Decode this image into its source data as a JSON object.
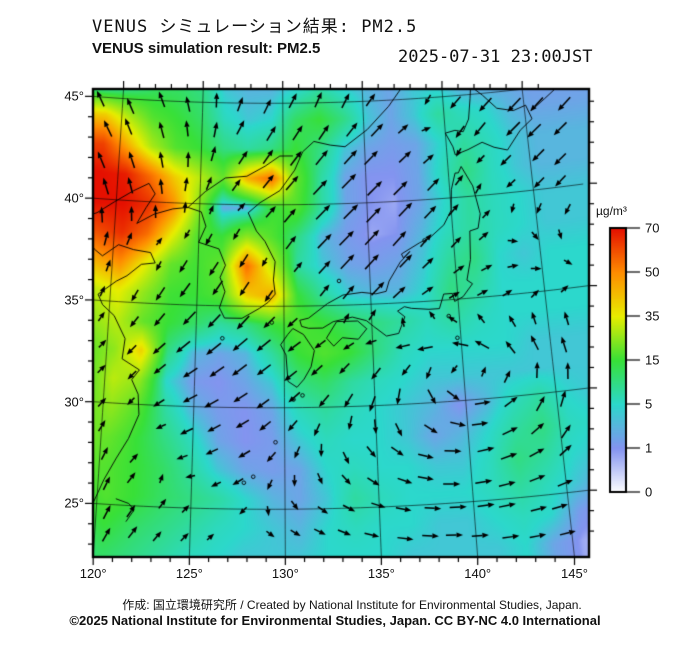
{
  "header": {
    "title_jp": "VENUS シミュレーション結果: PM2.5",
    "title_en": "VENUS simulation result: PM2.5",
    "timestamp": "2025-07-31 23:00JST"
  },
  "footer": {
    "credit": "作成: 国立環境研究所 / Created by National Institute for Environmental Studies, Japan.",
    "license": "©2025 National Institute for Environmental Studies, Japan. CC BY-NC 4.0 International"
  },
  "colorbar": {
    "unit": "µg/m³",
    "tick_values": [
      70,
      50,
      35,
      15,
      5,
      1,
      0
    ],
    "scale_values": [
      0,
      1,
      5,
      15,
      35,
      50,
      70
    ],
    "scale_colors": [
      "#ffffff",
      "#8494f0",
      "#2cd8cc",
      "#38e038",
      "#e8ee00",
      "#ff8c00",
      "#e51000"
    ]
  },
  "map": {
    "lon_ticks": [
      {
        "v": 120,
        "label": "120°"
      },
      {
        "v": 125,
        "label": "125°"
      },
      {
        "v": 130,
        "label": "130°"
      },
      {
        "v": 135,
        "label": "135°"
      },
      {
        "v": 140,
        "label": "140°"
      },
      {
        "v": 145,
        "label": "145°"
      }
    ],
    "lat_ticks": [
      {
        "v": 45,
        "label": "45°"
      },
      {
        "v": 40,
        "label": "40°"
      },
      {
        "v": 35,
        "label": "35°"
      },
      {
        "v": 30,
        "label": "30°"
      },
      {
        "v": 25,
        "label": "25°"
      }
    ]
  },
  "chart_data": {
    "type": "heatmap",
    "title": "VENUS simulation result: PM2.5",
    "unit": "µg/m³",
    "pm25_grid": {
      "lon0": 119,
      "lon1": 147,
      "nx": 20,
      "lat0": 45.6,
      "lat1": 22.6,
      "ny": 17,
      "values": [
        [
          4,
          8,
          12,
          12,
          10,
          4,
          3,
          3,
          5,
          8,
          5,
          3,
          2,
          4,
          4,
          2,
          1.5,
          2,
          1.5,
          1.5
        ],
        [
          40,
          28,
          18,
          15,
          12,
          6,
          4,
          5,
          12,
          15,
          10,
          4,
          2,
          4,
          8,
          6,
          5,
          3,
          2,
          2
        ],
        [
          62,
          45,
          28,
          18,
          15,
          10,
          8,
          10,
          15,
          10,
          4,
          2,
          1.5,
          2,
          5,
          8,
          6,
          4,
          3,
          3
        ],
        [
          70,
          68,
          55,
          40,
          30,
          20,
          45,
          55,
          20,
          8,
          2,
          1,
          1,
          2,
          6,
          10,
          6,
          4,
          3,
          3
        ],
        [
          70,
          70,
          65,
          50,
          25,
          2,
          2,
          15,
          18,
          8,
          2,
          1,
          0.8,
          2,
          5,
          8,
          6,
          5,
          4,
          4
        ],
        [
          60,
          65,
          55,
          35,
          18,
          15,
          25,
          18,
          10,
          3,
          1.5,
          0.8,
          1,
          3,
          6,
          8,
          6,
          5,
          4,
          4
        ],
        [
          45,
          50,
          35,
          20,
          16,
          20,
          55,
          30,
          8,
          4,
          2,
          1.5,
          2,
          4,
          8,
          10,
          5,
          4,
          5,
          5
        ],
        [
          30,
          35,
          25,
          16,
          15,
          18,
          40,
          45,
          15,
          8,
          4,
          3,
          3,
          5,
          10,
          8,
          5,
          5,
          5,
          5
        ],
        [
          25,
          30,
          20,
          15,
          12,
          8,
          10,
          15,
          18,
          15,
          12,
          10,
          8,
          6,
          8,
          6,
          5,
          5,
          5,
          5
        ],
        [
          20,
          25,
          40,
          10,
          3,
          2,
          3,
          8,
          15,
          18,
          15,
          10,
          6,
          5,
          5,
          5,
          5,
          4,
          4,
          4
        ],
        [
          18,
          30,
          25,
          5,
          1.5,
          1,
          2,
          4,
          10,
          12,
          8,
          6,
          5,
          4,
          4,
          4,
          4,
          4,
          4,
          4
        ],
        [
          20,
          25,
          18,
          8,
          3,
          1.5,
          1,
          2,
          6,
          8,
          6,
          5,
          4,
          3,
          1,
          3,
          6,
          8,
          5,
          4
        ],
        [
          22,
          20,
          15,
          10,
          6,
          2,
          1,
          1.5,
          4,
          6,
          5,
          5,
          4,
          2,
          3,
          5,
          8,
          10,
          6,
          5
        ],
        [
          20,
          18,
          15,
          12,
          8,
          4,
          2,
          1.5,
          2,
          5,
          6,
          5,
          5,
          4,
          4,
          6,
          10,
          8,
          5,
          4
        ],
        [
          15,
          18,
          15,
          12,
          10,
          8,
          5,
          3,
          2,
          4,
          8,
          6,
          5,
          5,
          5,
          6,
          8,
          6,
          4,
          2
        ],
        [
          12,
          15,
          12,
          10,
          8,
          6,
          5,
          4,
          3,
          5,
          6,
          5,
          5,
          4,
          4,
          5,
          6,
          5,
          1.5,
          0.5
        ],
        [
          10,
          12,
          10,
          8,
          6,
          5,
          4,
          4,
          4,
          5,
          5,
          5,
          4,
          4,
          4,
          4,
          5,
          2,
          0.8,
          0.4
        ]
      ]
    },
    "wind_grid": {
      "lon0": 119,
      "lon1": 147,
      "nx": 11,
      "lat0": 45.6,
      "lat1": 22.6,
      "ny": 10,
      "u": [
        [
          -0.4,
          -0.4,
          -0.2,
          0.2,
          0.4,
          0.3,
          0.4,
          -0.3,
          -0.8,
          -0.8,
          -0.7
        ],
        [
          -0.5,
          -0.3,
          0.0,
          0.5,
          0.6,
          0.7,
          0.8,
          0.4,
          -0.6,
          -0.9,
          -0.8
        ],
        [
          -0.3,
          -0.2,
          0.2,
          0.4,
          0.8,
          1.0,
          1.0,
          0.8,
          0.3,
          -0.5,
          -0.6
        ],
        [
          0.2,
          0.3,
          -0.3,
          -0.5,
          0.5,
          1.0,
          1.0,
          0.6,
          0.4,
          0.2,
          0.0
        ],
        [
          0.3,
          -0.4,
          -0.7,
          -0.6,
          -0.3,
          0.6,
          0.8,
          0.5,
          0.5,
          0.4,
          0.2
        ],
        [
          0.5,
          -0.6,
          -0.9,
          -1.0,
          -0.8,
          -0.5,
          -0.6,
          -1.0,
          -0.9,
          -0.5,
          -0.3
        ],
        [
          0.6,
          -0.3,
          -0.8,
          -0.8,
          -0.6,
          -0.5,
          -0.3,
          0.6,
          0.9,
          0.3,
          0.0
        ],
        [
          0.3,
          0.3,
          -0.5,
          -0.6,
          -0.3,
          0.2,
          0.6,
          1.0,
          1.0,
          0.8,
          0.2
        ],
        [
          0.3,
          0.4,
          0.2,
          -0.3,
          0.2,
          0.5,
          0.8,
          1.0,
          1.0,
          0.9,
          0.8
        ],
        [
          0.4,
          0.5,
          0.3,
          0.2,
          0.4,
          0.7,
          0.9,
          1.0,
          1.0,
          0.9,
          0.8
        ]
      ],
      "v": [
        [
          0.9,
          0.9,
          0.8,
          0.7,
          0.8,
          0.9,
          0.6,
          -0.5,
          -0.8,
          -0.9,
          -0.9
        ],
        [
          1.0,
          1.0,
          0.9,
          0.8,
          0.9,
          0.9,
          0.8,
          0.3,
          -0.8,
          -0.9,
          -0.8
        ],
        [
          1.0,
          0.9,
          0.6,
          0.5,
          0.9,
          1.0,
          1.0,
          0.8,
          0.5,
          -0.5,
          -0.6
        ],
        [
          0.8,
          0.4,
          -0.6,
          -0.8,
          0.7,
          1.0,
          1.1,
          0.7,
          0.4,
          -0.2,
          -0.3
        ],
        [
          0.6,
          -0.7,
          -0.9,
          -0.9,
          -0.4,
          0.8,
          0.8,
          0.3,
          0.2,
          0.1,
          0.0
        ],
        [
          0.5,
          -0.6,
          -0.7,
          -0.8,
          -0.6,
          -0.4,
          -0.2,
          -0.1,
          0.5,
          0.8,
          0.9
        ],
        [
          0.6,
          -0.3,
          -0.4,
          -0.5,
          -0.5,
          -0.7,
          -1.0,
          -0.8,
          0.3,
          1.0,
          1.0
        ],
        [
          0.8,
          0.3,
          -0.2,
          -0.3,
          -0.5,
          -0.6,
          -0.5,
          -0.1,
          0.3,
          0.6,
          0.9
        ],
        [
          0.9,
          0.6,
          0.2,
          -0.2,
          -0.3,
          -0.3,
          -0.2,
          0.0,
          0.2,
          0.3,
          0.3
        ],
        [
          0.9,
          0.6,
          0.3,
          0.1,
          -0.1,
          -0.2,
          -0.1,
          0.0,
          0.1,
          0.2,
          0.2
        ]
      ]
    },
    "coastlines": [
      [
        [
          119.8,
          25.0
        ],
        [
          120.3,
          26.2
        ],
        [
          120.9,
          27.3
        ],
        [
          121.5,
          28.3
        ],
        [
          122.0,
          29.5
        ],
        [
          121.9,
          30.5
        ],
        [
          121.5,
          31.2
        ],
        [
          121.9,
          31.7
        ],
        [
          120.9,
          32.2
        ],
        [
          121.0,
          33.2
        ],
        [
          120.3,
          34.3
        ],
        [
          119.6,
          34.8
        ],
        [
          119.3,
          35.3
        ],
        [
          120.3,
          36.0
        ],
        [
          120.9,
          36.3
        ],
        [
          121.7,
          36.9
        ],
        [
          122.5,
          37.0
        ],
        [
          122.2,
          37.5
        ],
        [
          121.2,
          37.6
        ],
        [
          120.3,
          37.8
        ],
        [
          119.4,
          37.2
        ],
        [
          118.9,
          37.5
        ],
        [
          118.3,
          38.2
        ],
        [
          118.0,
          39.0
        ],
        [
          118.9,
          39.3
        ],
        [
          119.9,
          39.9
        ],
        [
          121.0,
          40.5
        ],
        [
          121.9,
          40.9
        ],
        [
          122.3,
          40.4
        ],
        [
          121.8,
          39.7
        ],
        [
          121.3,
          38.9
        ],
        [
          122.3,
          39.4
        ],
        [
          123.4,
          39.7
        ],
        [
          124.3,
          39.8
        ]
      ],
      [
        [
          124.3,
          39.8
        ],
        [
          125.1,
          39.6
        ],
        [
          125.4,
          38.9
        ],
        [
          125.0,
          38.1
        ],
        [
          126.2,
          37.8
        ],
        [
          126.6,
          37.0
        ],
        [
          126.3,
          36.4
        ],
        [
          126.6,
          35.7
        ],
        [
          126.3,
          34.9
        ],
        [
          126.6,
          34.4
        ],
        [
          127.6,
          34.4
        ],
        [
          128.6,
          34.9
        ],
        [
          129.1,
          35.2
        ],
        [
          129.5,
          35.6
        ],
        [
          129.4,
          36.3
        ],
        [
          129.5,
          37.2
        ],
        [
          128.9,
          38.2
        ],
        [
          128.4,
          38.7
        ],
        [
          127.9,
          39.6
        ],
        [
          128.6,
          40.1
        ],
        [
          129.8,
          40.7
        ],
        [
          130.7,
          41.7
        ],
        [
          131.2,
          42.6
        ],
        [
          131.9,
          43.1
        ],
        [
          132.9,
          42.9
        ],
        [
          133.8,
          42.8
        ],
        [
          135.2,
          43.6
        ],
        [
          136.6,
          44.7
        ],
        [
          137.7,
          45.8
        ],
        [
          138.3,
          46.5
        ]
      ],
      [
        [
          124.3,
          39.8
        ],
        [
          125.3,
          40.6
        ],
        [
          126.5,
          41.3
        ],
        [
          127.8,
          41.4
        ],
        [
          128.9,
          41.9
        ],
        [
          129.8,
          42.4
        ],
        [
          130.6,
          42.4
        ]
      ],
      [
        [
          140.8,
          41.5
        ],
        [
          141.4,
          40.5
        ],
        [
          141.7,
          39.1
        ],
        [
          141.5,
          38.4
        ],
        [
          141.0,
          38.3
        ],
        [
          140.9,
          36.9
        ],
        [
          140.6,
          35.9
        ],
        [
          140.9,
          35.7
        ],
        [
          140.3,
          35.1
        ],
        [
          139.8,
          34.9
        ],
        [
          139.7,
          35.3
        ],
        [
          139.2,
          35.3
        ],
        [
          138.9,
          34.6
        ],
        [
          138.3,
          34.6
        ],
        [
          137.3,
          34.7
        ],
        [
          136.9,
          34.8
        ],
        [
          136.5,
          34.6
        ],
        [
          136.9,
          34.3
        ],
        [
          136.5,
          33.5
        ],
        [
          135.8,
          33.4
        ],
        [
          135.1,
          33.9
        ],
        [
          134.7,
          34.2
        ],
        [
          133.9,
          34.4
        ],
        [
          132.8,
          34.2
        ],
        [
          132.2,
          33.9
        ],
        [
          131.4,
          33.9
        ],
        [
          131.0,
          34.0
        ],
        [
          130.9,
          34.3
        ],
        [
          131.4,
          34.4
        ],
        [
          132.5,
          35.1
        ],
        [
          133.4,
          35.5
        ],
        [
          134.5,
          35.6
        ],
        [
          135.3,
          35.5
        ],
        [
          135.9,
          35.6
        ],
        [
          136.1,
          36.1
        ],
        [
          136.8,
          37.0
        ],
        [
          137.4,
          37.5
        ],
        [
          137.0,
          37.2
        ],
        [
          136.9,
          37.4
        ],
        [
          138.0,
          37.9
        ],
        [
          138.6,
          38.1
        ],
        [
          139.5,
          38.7
        ],
        [
          140.0,
          39.4
        ],
        [
          140.1,
          40.4
        ],
        [
          140.4,
          41.2
        ],
        [
          140.6,
          41.2
        ],
        [
          140.8,
          41.5
        ]
      ],
      [
        [
          140.4,
          42.5
        ],
        [
          140.0,
          43.2
        ],
        [
          140.6,
          43.3
        ],
        [
          141.1,
          43.2
        ],
        [
          141.5,
          43.8
        ],
        [
          141.7,
          44.8
        ],
        [
          141.8,
          45.4
        ],
        [
          142.5,
          44.9
        ],
        [
          143.3,
          44.2
        ],
        [
          144.3,
          44.0
        ],
        [
          145.1,
          44.2
        ],
        [
          145.4,
          43.5
        ],
        [
          144.6,
          43.0
        ],
        [
          143.7,
          42.1
        ],
        [
          142.9,
          42.3
        ],
        [
          142.2,
          42.6
        ],
        [
          141.3,
          42.3
        ],
        [
          140.5,
          42.1
        ],
        [
          140.4,
          42.5
        ]
      ],
      [
        [
          130.2,
          33.6
        ],
        [
          129.8,
          33.1
        ],
        [
          130.1,
          32.6
        ],
        [
          130.2,
          31.3
        ],
        [
          130.7,
          31.0
        ],
        [
          131.1,
          31.4
        ],
        [
          131.5,
          32.0
        ],
        [
          131.7,
          32.8
        ],
        [
          131.1,
          33.6
        ],
        [
          130.5,
          33.9
        ],
        [
          130.2,
          33.6
        ]
      ],
      [
        [
          132.8,
          33.0
        ],
        [
          132.4,
          33.4
        ],
        [
          133.0,
          34.2
        ],
        [
          134.2,
          34.2
        ],
        [
          134.7,
          33.8
        ],
        [
          134.2,
          33.3
        ],
        [
          133.3,
          33.4
        ],
        [
          132.8,
          33.0
        ]
      ],
      [
        [
          121.0,
          25.3
        ],
        [
          121.7,
          25.1
        ],
        [
          122.0,
          24.8
        ],
        [
          121.6,
          24.2
        ]
      ],
      [
        [
          145.4,
          43.9
        ],
        [
          146.3,
          44.4
        ],
        [
          147.0,
          44.8
        ]
      ]
    ],
    "islands": [
      [
        126.5,
        33.4
      ],
      [
        129.3,
        34.2
      ],
      [
        138.3,
        38.0
      ],
      [
        133.2,
        36.2
      ],
      [
        128.3,
        26.6
      ],
      [
        127.8,
        26.3
      ],
      [
        129.5,
        28.3
      ],
      [
        130.5,
        30.4
      ],
      [
        131.0,
        30.6
      ],
      [
        139.4,
        34.2
      ],
      [
        139.8,
        33.1
      ]
    ]
  }
}
